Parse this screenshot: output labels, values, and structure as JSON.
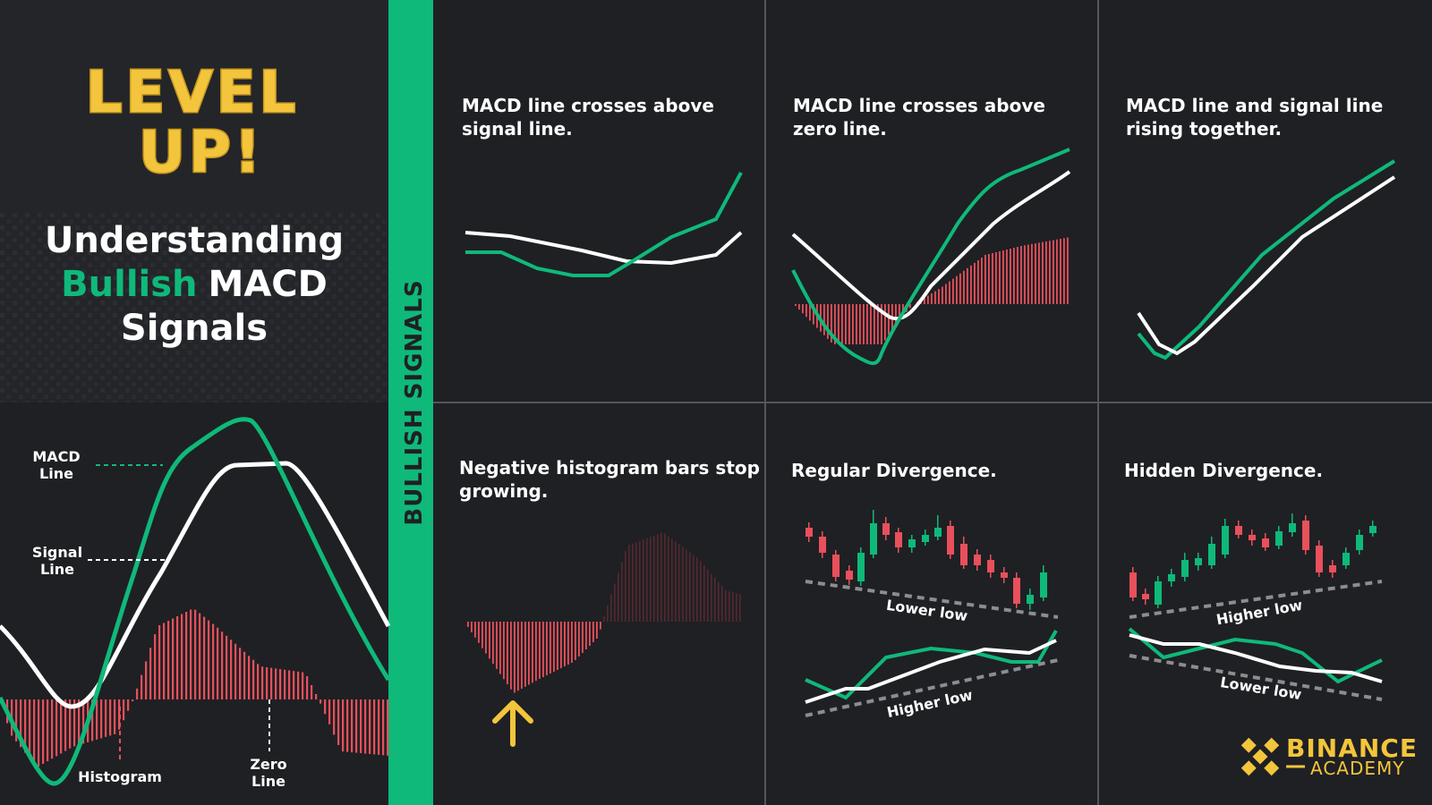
{
  "colors": {
    "background": "#1f2024",
    "left_panel": "#222428",
    "green": "#0fb97a",
    "white": "#ffffff",
    "red": "#e8505b",
    "yellow": "#f3c53c",
    "divider": "#54565b"
  },
  "hero": {
    "level_line1": "LEVEL",
    "level_line2": "UP!",
    "title_line1": "Understanding",
    "title_highlight": "Bullish",
    "title_rest": "MACD",
    "title_line3": "Signals"
  },
  "legend": {
    "macd_line_1": "MACD",
    "macd_line_2": "Line",
    "signal_line_1": "Signal",
    "signal_line_2": "Line",
    "histogram": "Histogram",
    "zero_line_1": "Zero",
    "zero_line_2": "Line"
  },
  "sidebar": {
    "label": "BULLISH SIGNALS"
  },
  "panels": {
    "p1": {
      "line1": "MACD line crosses above",
      "line2": "signal line."
    },
    "p2": {
      "line1": "MACD line crosses above",
      "line2": "zero line."
    },
    "p3": {
      "line1": "MACD line and signal line",
      "line2": "rising together."
    },
    "p4": {
      "line1": "Negative histogram bars stop",
      "line2": "growing."
    },
    "p5": {
      "title": "Regular Divergence.",
      "price_label": "Lower low",
      "macd_label": "Higher low"
    },
    "p6": {
      "title": "Hidden Divergence.",
      "price_label": "Higher low",
      "macd_label": "Lower low"
    }
  },
  "brand": {
    "name": "BINANCE",
    "sub": "ACADEMY"
  }
}
